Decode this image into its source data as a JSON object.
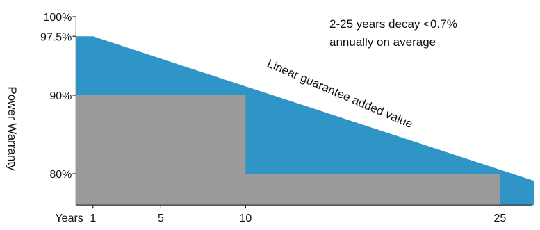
{
  "chart_data": {
    "type": "area",
    "title": "",
    "xlabel": "Years",
    "ylabel": "Power Warranty",
    "x_ticks": [
      1,
      5,
      10,
      25
    ],
    "y_ticks": [
      {
        "value": 100,
        "label": "100%"
      },
      {
        "value": 97.5,
        "label": "97.5%"
      },
      {
        "value": 90,
        "label": "90%"
      },
      {
        "value": 80,
        "label": "80%"
      }
    ],
    "xlim": [
      0,
      27
    ],
    "ylim": [
      76,
      100
    ],
    "series": [
      {
        "name": "Linear guarantee added value",
        "color": "#2f95c6",
        "points": [
          [
            0,
            97.5
          ],
          [
            1,
            97.5
          ],
          [
            27,
            79.1
          ]
        ]
      },
      {
        "name": "",
        "color": "#9a9a9a",
        "points": [
          [
            0,
            90
          ],
          [
            10,
            90
          ],
          [
            10,
            80
          ],
          [
            25,
            80
          ]
        ]
      }
    ],
    "annotations": [
      {
        "lines": [
          "2-25 years decay <0.7%",
          "annually on average"
        ]
      }
    ],
    "grid": false
  }
}
